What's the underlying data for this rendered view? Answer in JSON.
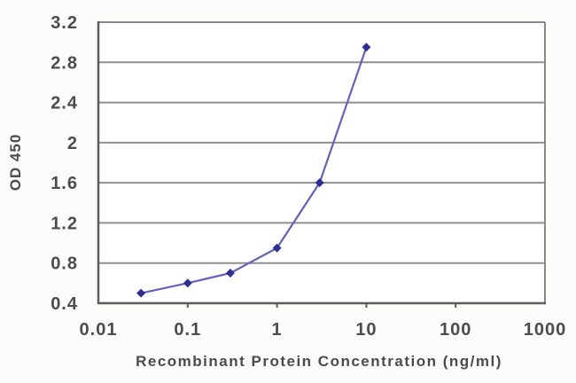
{
  "chart_data": {
    "type": "line",
    "title": "",
    "xlabel": "Recombinant Protein Concentration (ng/ml)",
    "ylabel": "OD 450",
    "x_scale": "log",
    "xlim": [
      0.01,
      1000
    ],
    "ylim": [
      0.4,
      3.2
    ],
    "x_ticks": [
      0.01,
      0.1,
      1,
      10,
      100,
      1000
    ],
    "x_tick_labels": [
      "0.01",
      "0.1",
      "1",
      "10",
      "100",
      "1000"
    ],
    "y_ticks": [
      0.4,
      0.8,
      1.2,
      1.6,
      2,
      2.4,
      2.8,
      3.2
    ],
    "y_tick_labels": [
      "0.4",
      "0.8",
      "1.2",
      "1.6",
      "2",
      "2.4",
      "2.8",
      "3.2"
    ],
    "grid": "horizontal",
    "legend": "none",
    "series": [
      {
        "name": "OD 450",
        "x": [
          0.03,
          0.1,
          0.3,
          1,
          3,
          10
        ],
        "y": [
          0.5,
          0.6,
          0.7,
          0.95,
          1.6,
          2.95
        ],
        "marker": "diamond",
        "line_color": "#6262b6",
        "marker_color": "#2e2e94"
      }
    ],
    "colors": {
      "plot_background": "#ffffff",
      "grid_color": "#8f8f8f",
      "border_color": "#8a8a8a",
      "axis_color": "#5c5c5c",
      "text_color": "#4c4c4c"
    }
  }
}
